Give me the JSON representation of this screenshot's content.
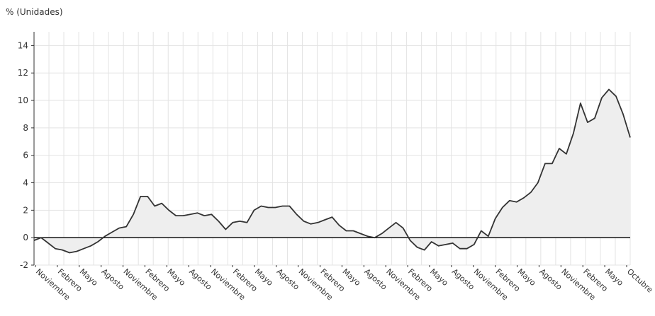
{
  "chart_data": {
    "type": "area",
    "ylabel": "% (Unidades)",
    "ylim": [
      -2,
      15
    ],
    "yticks": [
      -2,
      0,
      2,
      4,
      6,
      8,
      10,
      12,
      14
    ],
    "grid": true,
    "legend": "none",
    "x_tick_labels": [
      "Noviembre",
      "Febrero",
      "Mayo",
      "Agosto",
      "Noviembre",
      "Febrero",
      "Mayo",
      "Agosto",
      "Noviembre",
      "Febrero",
      "Mayo",
      "Agosto",
      "Noviembre",
      "Febrero",
      "Mayo",
      "Agosto",
      "Noviembre",
      "Febrero",
      "Mayo",
      "Agosto",
      "Noviembre",
      "Febrero",
      "Mayo",
      "Agosto",
      "Noviembre",
      "Febrero",
      "Mayo",
      "Octubre"
    ],
    "series": [
      {
        "values": [
          -0.2,
          0.0,
          -0.4,
          -0.8,
          -0.9,
          -1.1,
          -1.0,
          -0.8,
          -0.6,
          -0.3,
          0.1,
          0.4,
          0.7,
          0.8,
          1.7,
          3.0,
          3.0,
          2.3,
          2.5,
          2.0,
          1.6,
          1.6,
          1.7,
          1.8,
          1.6,
          1.7,
          1.2,
          0.6,
          1.1,
          1.2,
          1.1,
          2.0,
          2.3,
          2.2,
          2.2,
          2.3,
          2.3,
          1.7,
          1.2,
          1.0,
          1.1,
          1.3,
          1.5,
          0.9,
          0.5,
          0.5,
          0.3,
          0.1,
          0.0,
          0.3,
          0.7,
          1.1,
          0.7,
          -0.2,
          -0.7,
          -0.9,
          -0.3,
          -0.6,
          -0.5,
          -0.4,
          -0.8,
          -0.8,
          -0.5,
          0.5,
          0.1,
          1.4,
          2.2,
          2.7,
          2.6,
          2.9,
          3.3,
          4.0,
          5.4,
          5.4,
          6.5,
          6.1,
          7.6,
          9.8,
          8.4,
          8.7,
          10.2,
          10.8,
          10.3,
          9.0,
          7.3
        ],
        "color": "#333333",
        "fill": "#eeeeee"
      }
    ],
    "colors": {
      "line": "#333333",
      "fill": "#eeeeee",
      "zero_line": "#222222",
      "grid": "#e3e3e3"
    }
  }
}
